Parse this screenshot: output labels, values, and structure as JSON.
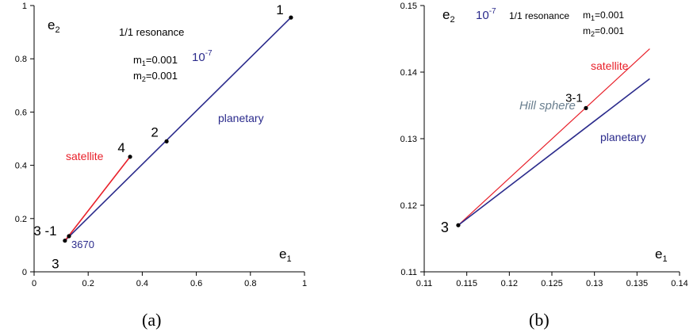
{
  "colors": {
    "planetary": "#2b2b8c",
    "satellite": "#e8202a",
    "hill": "#6a7f8f",
    "text": "#000000"
  },
  "chart_data": [
    {
      "panel": "a",
      "type": "line",
      "caption": "(a)",
      "xlabel": "e1",
      "ylabel": "e2",
      "xlim": [
        0,
        1
      ],
      "ylim": [
        0,
        1
      ],
      "x_ticks": [
        "0",
        "0.2",
        "0.4",
        "0.6",
        "0.8",
        "1"
      ],
      "y_ticks": [
        "0",
        "0.2",
        "0.4",
        "0.6",
        "0.8",
        "1"
      ],
      "grid": false,
      "texts": {
        "resonance": "1/1 resonance",
        "m1": "m1=0.001",
        "m2": "m2=0.001",
        "tolerance": "10-7",
        "planetary": "planetary",
        "satellite": "satellite",
        "count": "3670"
      },
      "series": [
        {
          "name": "planetary",
          "x": [
            0.114,
            0.95
          ],
          "y": [
            0.117,
            0.955
          ]
        },
        {
          "name": "satellite",
          "x": [
            0.114,
            0.355
          ],
          "y": [
            0.117,
            0.432
          ]
        }
      ],
      "points": [
        {
          "label": "1",
          "x": 0.95,
          "y": 0.955
        },
        {
          "label": "2",
          "x": 0.49,
          "y": 0.49
        },
        {
          "label": "4",
          "x": 0.355,
          "y": 0.432
        },
        {
          "label": "3 -1",
          "x": 0.129,
          "y": 0.134
        },
        {
          "label": "3",
          "x": 0.114,
          "y": 0.117
        }
      ]
    },
    {
      "panel": "b",
      "type": "line",
      "caption": "(b)",
      "xlabel": "e1",
      "ylabel": "e2",
      "xlim": [
        0.11,
        0.14
      ],
      "ylim": [
        0.11,
        0.15
      ],
      "x_ticks": [
        "0.11",
        "0.115",
        "0.12",
        "0.125",
        "0.13",
        "0.135",
        "0.14"
      ],
      "y_ticks": [
        "0.11",
        "0.12",
        "0.13",
        "0.14",
        "0.15"
      ],
      "grid": false,
      "texts": {
        "resonance": "1/1 resonance",
        "m1": "m1=0.001",
        "m2": "m2=0.001",
        "tolerance": "10-7",
        "planetary": "planetary",
        "satellite": "satellite",
        "hill": "Hill sphere"
      },
      "series": [
        {
          "name": "satellite",
          "x": [
            0.114,
            0.1365
          ],
          "y": [
            0.117,
            0.1435
          ]
        },
        {
          "name": "planetary",
          "x": [
            0.114,
            0.1365
          ],
          "y": [
            0.117,
            0.139
          ]
        }
      ],
      "points": [
        {
          "label": "3-1",
          "x": 0.129,
          "y": 0.1346
        },
        {
          "label": "3",
          "x": 0.114,
          "y": 0.117
        }
      ]
    }
  ]
}
